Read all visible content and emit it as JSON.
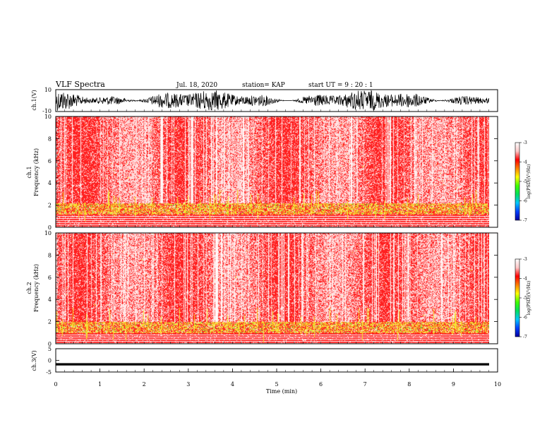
{
  "header": {
    "title": "VLF Spectra",
    "date": "Jul. 18, 2020",
    "station": "station= KAP",
    "start": "start UT = 9 : 20 : 1"
  },
  "colors": {
    "background": "#ffffff",
    "spec_base": "#ffd9d9",
    "spec_red": "#ff2020",
    "spec_yellow": "#f4e030",
    "spec_green": "#40c840",
    "waveform": "#000000"
  },
  "colorbar": {
    "label": "log(PSD)(V²/Hz)",
    "ticks": [
      "-3",
      "-4",
      "-5",
      "-6",
      "-7"
    ],
    "values": [
      -3,
      -4,
      -5,
      -6,
      -7
    ],
    "range": [
      -7,
      -3
    ],
    "stops": [
      "#0000a0",
      "#0040ff",
      "#00c8ff",
      "#00e060",
      "#40ff00",
      "#ffff00",
      "#ff8000",
      "#ff0000",
      "#ffc8c8",
      "#ffffff"
    ]
  },
  "chart_data": [
    {
      "type": "line",
      "panel": "ch1-waveform",
      "ylabel": "ch.1(V)",
      "ylim": [
        -10,
        10
      ],
      "yticks": [
        "10",
        "-10"
      ],
      "xlim": [
        0,
        9.85
      ]
    },
    {
      "type": "heatmap",
      "panel": "ch1-spectrogram",
      "ylabel": "ch.1 Frequency (kHz)",
      "ylabel_line1": "ch.1",
      "ylabel_line2": "Frequency (kHz)",
      "ylim": [
        0,
        10
      ],
      "yticks": [
        "0",
        "2",
        "4",
        "6",
        "8",
        "10"
      ],
      "ytick_values": [
        0,
        2,
        4,
        6,
        8,
        10
      ],
      "band_khz": [
        1.2,
        2.2
      ],
      "xlim": [
        0,
        9.85
      ]
    },
    {
      "type": "heatmap",
      "panel": "ch2-spectrogram",
      "ylabel": "ch.2 Frequency (kHz)",
      "ylabel_line1": "ch.2",
      "ylabel_line2": "Frequency (kHz)",
      "ylim": [
        0,
        10
      ],
      "yticks": [
        "0",
        "2",
        "4",
        "6",
        "8",
        "10"
      ],
      "ytick_values": [
        0,
        2,
        4,
        6,
        8,
        10
      ],
      "band_khz": [
        1.0,
        2.0
      ],
      "xlim": [
        0,
        9.85
      ]
    },
    {
      "type": "line",
      "panel": "ch3-waveform",
      "ylabel": "ch.3(V)",
      "ylim": [
        -5,
        5
      ],
      "yticks": [
        "5",
        "0",
        "-5"
      ],
      "ytick_values": [
        5,
        0,
        -5
      ],
      "level": [
        -2.2,
        -1.2
      ],
      "xlabel": "Time (min)",
      "xlim": [
        0,
        10
      ],
      "xticks": [
        "0",
        "1",
        "2",
        "3",
        "4",
        "5",
        "6",
        "7",
        "8",
        "9",
        "10"
      ],
      "xtick_values": [
        0,
        1,
        2,
        3,
        4,
        5,
        6,
        7,
        8,
        9,
        10
      ]
    }
  ]
}
